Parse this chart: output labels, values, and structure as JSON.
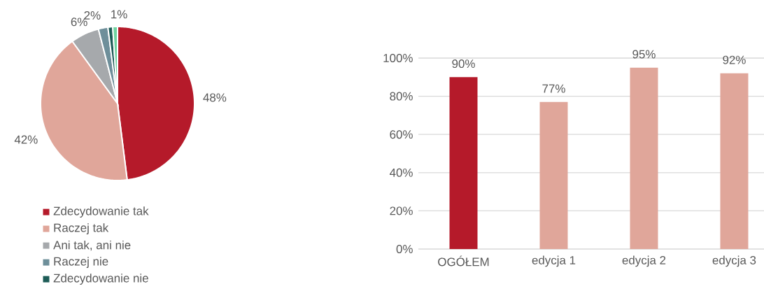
{
  "chart_data": [
    {
      "type": "pie",
      "categories": [
        "Zdecydowanie tak",
        "Raczej tak",
        "Ani tak, ani nie",
        "Raczej nie",
        "Zdecydowanie nie",
        null
      ],
      "values": [
        48,
        42,
        6,
        2,
        1,
        1
      ],
      "colors": [
        "#b51a2a",
        "#e0a69a",
        "#a6a9ac",
        "#6e8f9a",
        "#1d5c57",
        "#6fd3a0"
      ],
      "value_labels": [
        "48%",
        "42%",
        "6%",
        "2%",
        "1%",
        null
      ],
      "legend": "bottom"
    },
    {
      "type": "bar",
      "categories": [
        "OGÓŁEM",
        "edycja 1",
        "edycja 2",
        "edycja 3"
      ],
      "values": [
        90,
        77,
        95,
        92
      ],
      "colors": [
        "#b51a2a",
        "#e0a69a",
        "#e0a69a",
        "#e0a69a"
      ],
      "value_labels": [
        "90%",
        "77%",
        "95%",
        "92%"
      ],
      "ylim": [
        0,
        100
      ],
      "yticks": [
        {
          "value": 0,
          "label": "0%"
        },
        {
          "value": 20,
          "label": "20%"
        },
        {
          "value": 40,
          "label": "40%"
        },
        {
          "value": 60,
          "label": "60%"
        },
        {
          "value": 80,
          "label": "80%"
        },
        {
          "value": 100,
          "label": "100%"
        }
      ],
      "grid": "y"
    }
  ]
}
